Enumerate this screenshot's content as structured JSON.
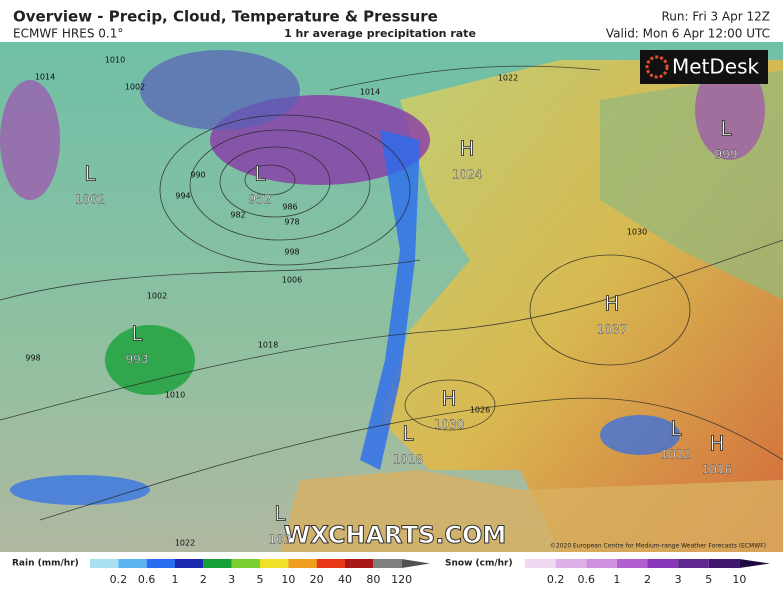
{
  "header": {
    "title": "Overview - Precip, Cloud, Temperature & Pressure",
    "model": "ECMWF HRES 0.1°",
    "subtitle": "1 hr average precipitation rate",
    "run": "Run: Fri 3 Apr 12Z",
    "valid": "Valid: Mon 6 Apr 12:00 UTC"
  },
  "logo": "MetDesk",
  "watermark": "WXCHARTS.COM",
  "copyright": "©2020 European Centre for Medium-range Weather Forecasts (ECMWF)",
  "centers": [
    {
      "kind": "L",
      "value": "1002"
    },
    {
      "kind": "L",
      "value": "952"
    },
    {
      "kind": "H",
      "value": "1024"
    },
    {
      "kind": "L",
      "value": "999"
    },
    {
      "kind": "L",
      "value": "993"
    },
    {
      "kind": "H",
      "value": "1037"
    },
    {
      "kind": "H",
      "value": "1030"
    },
    {
      "kind": "L",
      "value": "1018"
    },
    {
      "kind": "L",
      "value": "1012"
    },
    {
      "kind": "H",
      "value": "1016"
    },
    {
      "kind": "L",
      "value": "102"
    }
  ],
  "isobar_labels": [
    "1014",
    "1010",
    "1002",
    "990",
    "994",
    "982",
    "978",
    "986",
    "998",
    "1006",
    "1002",
    "998",
    "1010",
    "1018",
    "1014",
    "1022",
    "1030",
    "1026",
    "1022"
  ],
  "rain_legend": {
    "label": "Rain (mm/hr)",
    "ticks": [
      "0.2",
      "0.6",
      "1",
      "2",
      "3",
      "5",
      "10",
      "20",
      "40",
      "80",
      "120"
    ],
    "colors": [
      "#a8e0f0",
      "#5ab4f0",
      "#2a6cf0",
      "#1a2ab0",
      "#18a038",
      "#7ad030",
      "#f0e028",
      "#f0a020",
      "#e83818",
      "#a81818",
      "#808080",
      "#505050"
    ]
  },
  "snow_legend": {
    "label": "Snow (cm/hr)",
    "ticks": [
      "0.2",
      "0.6",
      "1",
      "2",
      "3",
      "5",
      "10"
    ],
    "colors": [
      "#f0d8f0",
      "#e0b0e8",
      "#d090e0",
      "#b060d0",
      "#8838b8",
      "#602890",
      "#401870",
      "#200840"
    ]
  }
}
